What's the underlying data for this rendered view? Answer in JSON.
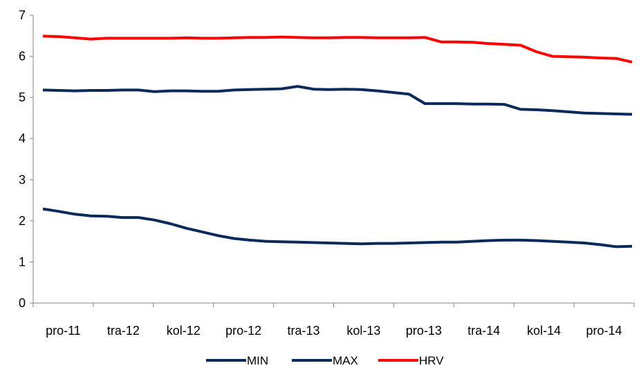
{
  "chart_data": {
    "type": "line",
    "title": "",
    "xlabel": "",
    "ylabel": "",
    "ylim": [
      0,
      7
    ],
    "yticks": [
      "0",
      "1",
      "2",
      "3",
      "4",
      "5",
      "6",
      "7"
    ],
    "xticks": [
      "pro-11",
      "tra-12",
      "kol-12",
      "pro-12",
      "tra-13",
      "kol-13",
      "pro-13",
      "tra-14",
      "kol-14",
      "pro-14"
    ],
    "grid": false,
    "legend_position": "bottom",
    "series": [
      {
        "name": "MIN",
        "color": "#0b2a5c",
        "values": [
          2.29,
          2.23,
          2.16,
          2.12,
          2.11,
          2.08,
          2.08,
          2.02,
          1.93,
          1.82,
          1.73,
          1.64,
          1.57,
          1.53,
          1.5,
          1.49,
          1.48,
          1.47,
          1.46,
          1.45,
          1.44,
          1.45,
          1.45,
          1.46,
          1.47,
          1.48,
          1.48,
          1.5,
          1.52,
          1.53,
          1.53,
          1.52,
          1.5,
          1.48,
          1.46,
          1.42,
          1.37,
          1.38
        ]
      },
      {
        "name": "MAX",
        "color": "#0b2a5c",
        "values": [
          5.18,
          5.17,
          5.16,
          5.17,
          5.17,
          5.18,
          5.18,
          5.14,
          5.16,
          5.16,
          5.15,
          5.15,
          5.18,
          5.19,
          5.2,
          5.21,
          5.27,
          5.2,
          5.19,
          5.2,
          5.19,
          5.16,
          5.12,
          5.08,
          4.85,
          4.85,
          4.85,
          4.84,
          4.84,
          4.83,
          4.71,
          4.7,
          4.68,
          4.65,
          4.62,
          4.61,
          4.6,
          4.59
        ]
      },
      {
        "name": "HRV",
        "color": "#ff0000",
        "values": [
          6.49,
          6.48,
          6.45,
          6.42,
          6.44,
          6.44,
          6.44,
          6.44,
          6.44,
          6.45,
          6.44,
          6.44,
          6.45,
          6.46,
          6.46,
          6.47,
          6.46,
          6.45,
          6.45,
          6.46,
          6.46,
          6.45,
          6.45,
          6.45,
          6.46,
          6.35,
          6.35,
          6.34,
          6.31,
          6.29,
          6.27,
          6.11,
          6.0,
          5.99,
          5.98,
          5.96,
          5.95,
          5.86
        ]
      }
    ]
  }
}
